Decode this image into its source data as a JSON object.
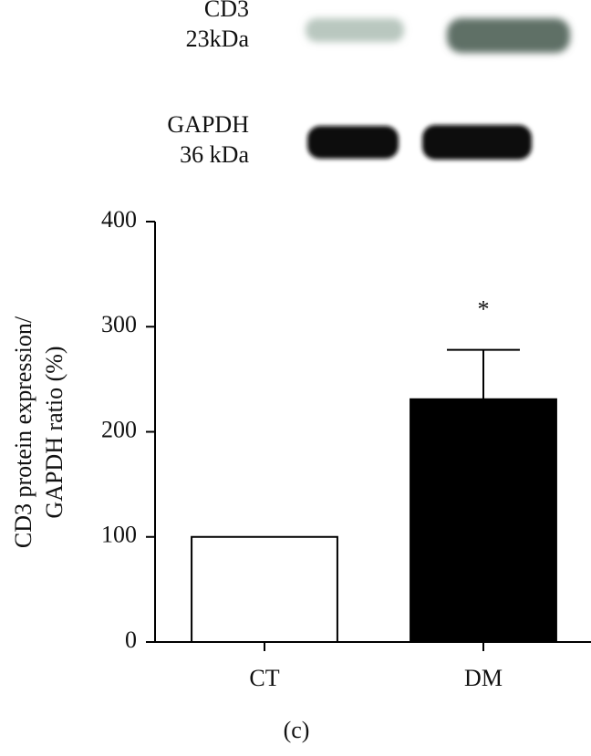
{
  "blot_labels": [
    "CD3",
    "23kDa",
    "GAPDH",
    "36 kDa"
  ],
  "chart_data": {
    "type": "bar",
    "ylabel": [
      "CD3 protein expression/",
      "GAPDH ratio (%)"
    ],
    "categories": [
      "CT",
      "DM"
    ],
    "values": [
      100,
      231
    ],
    "errors": [
      null,
      47
    ],
    "colors": [
      "#ffffff",
      "#000000"
    ],
    "ylim": [
      0,
      400
    ],
    "yticks": [
      0,
      100,
      200,
      300,
      400
    ],
    "annotations": [
      "*"
    ],
    "annotation_index": 1,
    "panel_label": "(c)"
  }
}
